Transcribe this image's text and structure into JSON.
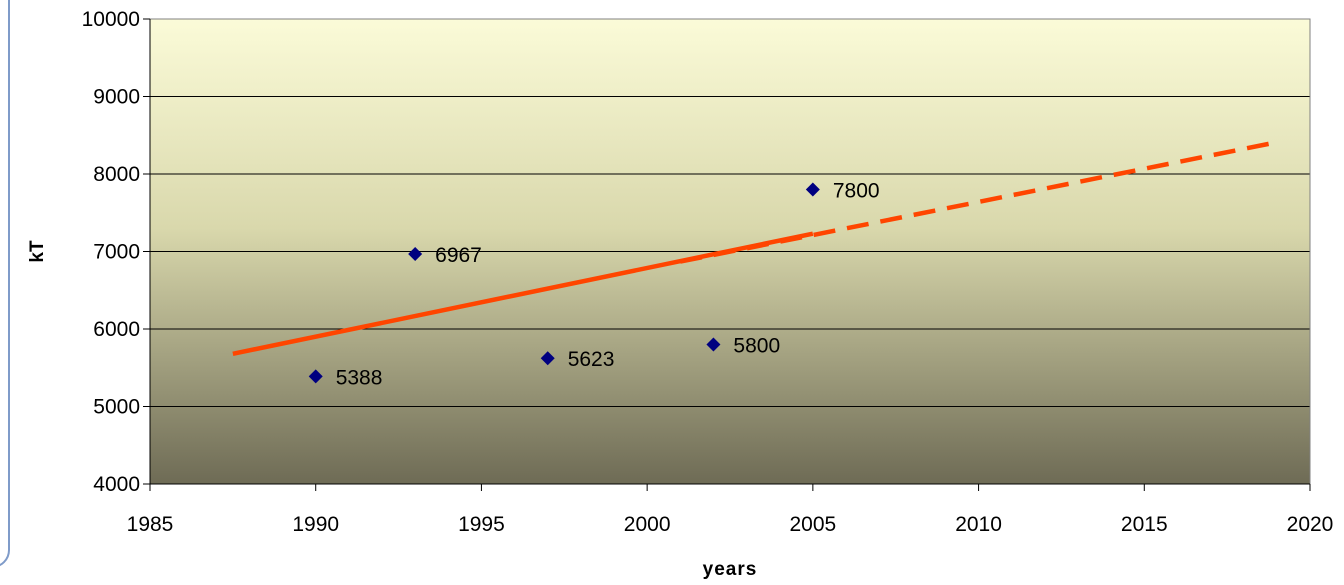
{
  "chart_data": {
    "type": "scatter",
    "xlabel": "years",
    "ylabel": "kT",
    "xlim": [
      1985,
      2020
    ],
    "ylim": [
      4000,
      10000
    ],
    "xticks": [
      1985,
      1990,
      1995,
      2000,
      2005,
      2010,
      2015,
      2020
    ],
    "yticks": [
      4000,
      5000,
      6000,
      7000,
      8000,
      9000,
      10000
    ],
    "grid": "horizontal",
    "series": [
      {
        "points": [
          {
            "x": 1990,
            "y": 5388,
            "label": "5388"
          },
          {
            "x": 1993,
            "y": 6967,
            "label": "6967"
          },
          {
            "x": 1997,
            "y": 5623,
            "label": "5623"
          },
          {
            "x": 2002,
            "y": 5800,
            "label": "5800"
          },
          {
            "x": 2005,
            "y": 7800,
            "label": "7800"
          }
        ],
        "marker": "diamond",
        "color": "#000080"
      }
    ],
    "trendline": {
      "solid": {
        "x": [
          1987.5,
          2005
        ],
        "y": [
          5680,
          7230
        ]
      },
      "dashed": {
        "x": [
          2001,
          2019
        ],
        "y": [
          6870,
          8410
        ]
      },
      "color": "#ff4500"
    },
    "background_gradient": [
      "#fbfbd8",
      "#6e6b55"
    ]
  }
}
